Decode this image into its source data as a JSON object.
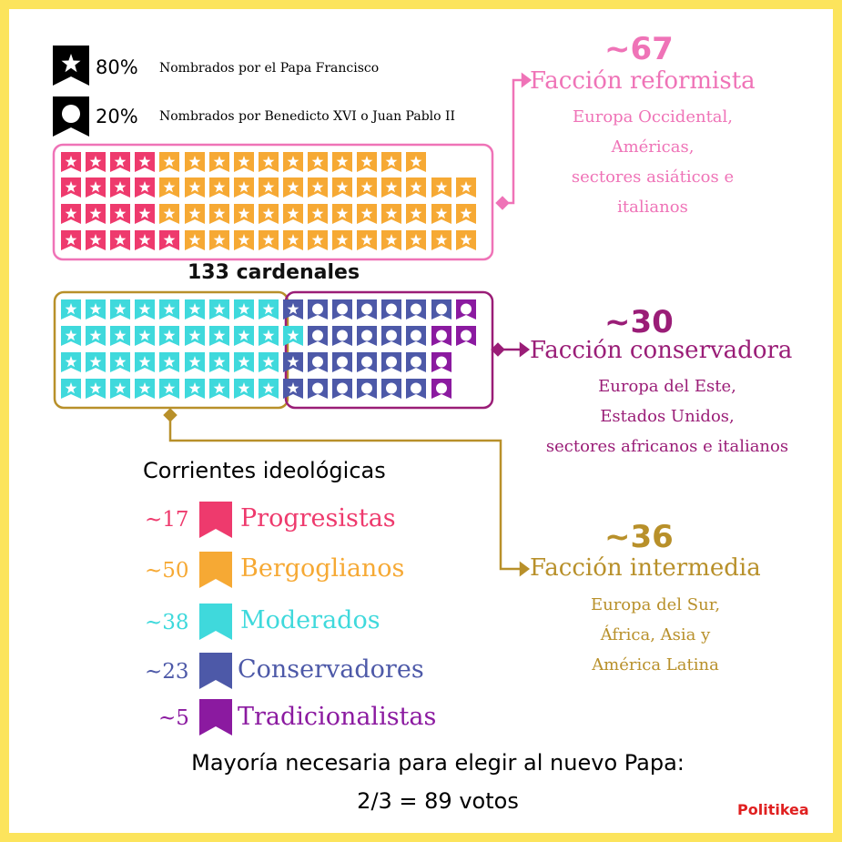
{
  "legend_top": {
    "francisco": {
      "percent": "80%",
      "label": "Nombrados por el Papa Francisco",
      "icon": "star-ribbon-icon"
    },
    "others": {
      "percent": "20%",
      "label": "Nombrados por Benedicto XVI  o Juan Pablo II",
      "icon": "circle-ribbon-icon"
    }
  },
  "total_label": "133 cardenales",
  "colors": {
    "progresistas": "#ee3a6d",
    "bergoglianos": "#f6a934",
    "moderados": "#3fd9dc",
    "conservadores": "#4d59a8",
    "tradicionalistas": "#8b1aa0",
    "reformista": "#ef73b7",
    "conservadora": "#9a1d77",
    "intermedia": "#b8902a",
    "politikea": "#e02020",
    "border": "#fce45c"
  },
  "factions": {
    "reformista": {
      "count": "~67",
      "title": "Facción reformista",
      "lines": [
        "Europa Occidental,",
        "Américas,",
        "sectores asiáticos e",
        "italianos"
      ]
    },
    "conservadora": {
      "count": "~30",
      "title": "Facción conservadora",
      "lines": [
        "Europa del Este,",
        "Estados Unidos,",
        "sectores africanos e italianos"
      ]
    },
    "intermedia": {
      "count": "~36",
      "title": "Facción intermedia",
      "lines": [
        "Europa del Sur,",
        "África, Asia y",
        "América Latina"
      ]
    }
  },
  "currents": {
    "title": "Corrientes ideológicas",
    "items": [
      {
        "count": "~17",
        "name": "Progresistas",
        "color_key": "progresistas"
      },
      {
        "count": "~50",
        "name": "Bergoglianos",
        "color_key": "bergoglianos"
      },
      {
        "count": "~38",
        "name": "Moderados",
        "color_key": "moderados"
      },
      {
        "count": "~23",
        "name": "Conservadores",
        "color_key": "conservadores"
      },
      {
        "count": "~5",
        "name": "Tradicionalistas",
        "color_key": "tradicionalistas"
      }
    ]
  },
  "footer": {
    "line1": "Mayoría necesaria para elegir al nuevo Papa:",
    "line2": "2/3 = 89 votos",
    "brand": "Politikea"
  }
}
